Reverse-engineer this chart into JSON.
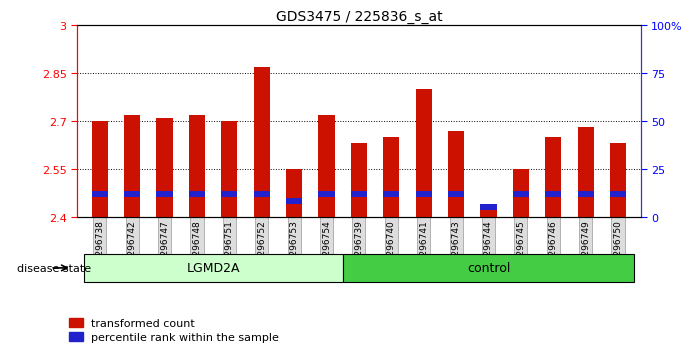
{
  "title": "GDS3475 / 225836_s_at",
  "samples": [
    "GSM296738",
    "GSM296742",
    "GSM296747",
    "GSM296748",
    "GSM296751",
    "GSM296752",
    "GSM296753",
    "GSM296754",
    "GSM296739",
    "GSM296740",
    "GSM296741",
    "GSM296743",
    "GSM296744",
    "GSM296745",
    "GSM296746",
    "GSM296749",
    "GSM296750"
  ],
  "groups": [
    "LGMD2A",
    "LGMD2A",
    "LGMD2A",
    "LGMD2A",
    "LGMD2A",
    "LGMD2A",
    "LGMD2A",
    "LGMD2A",
    "control",
    "control",
    "control",
    "control",
    "control",
    "control",
    "control",
    "control",
    "control"
  ],
  "transformed_counts": [
    2.7,
    2.72,
    2.71,
    2.72,
    2.7,
    2.87,
    2.55,
    2.72,
    2.63,
    2.65,
    2.8,
    2.67,
    2.43,
    2.55,
    2.65,
    2.68,
    2.63
  ],
  "percentile_ranks": [
    12,
    12,
    12,
    12,
    12,
    12,
    8,
    12,
    12,
    12,
    12,
    12,
    5,
    12,
    12,
    12,
    12
  ],
  "bar_color": "#CC1100",
  "blue_color": "#2222CC",
  "y_min": 2.4,
  "y_max": 3.0,
  "y_ticks": [
    2.4,
    2.55,
    2.7,
    2.85,
    3.0
  ],
  "y2_ticks": [
    0,
    25,
    50,
    75,
    100
  ],
  "lgmd2a_color_light": "#CCFFCC",
  "control_color_dark": "#55DD55",
  "group_colors": {
    "LGMD2A": "#CCFFCC",
    "control": "#44CC44"
  },
  "legend_items": [
    "transformed count",
    "percentile rank within the sample"
  ],
  "disease_state_label": "disease state",
  "bar_width": 0.5
}
